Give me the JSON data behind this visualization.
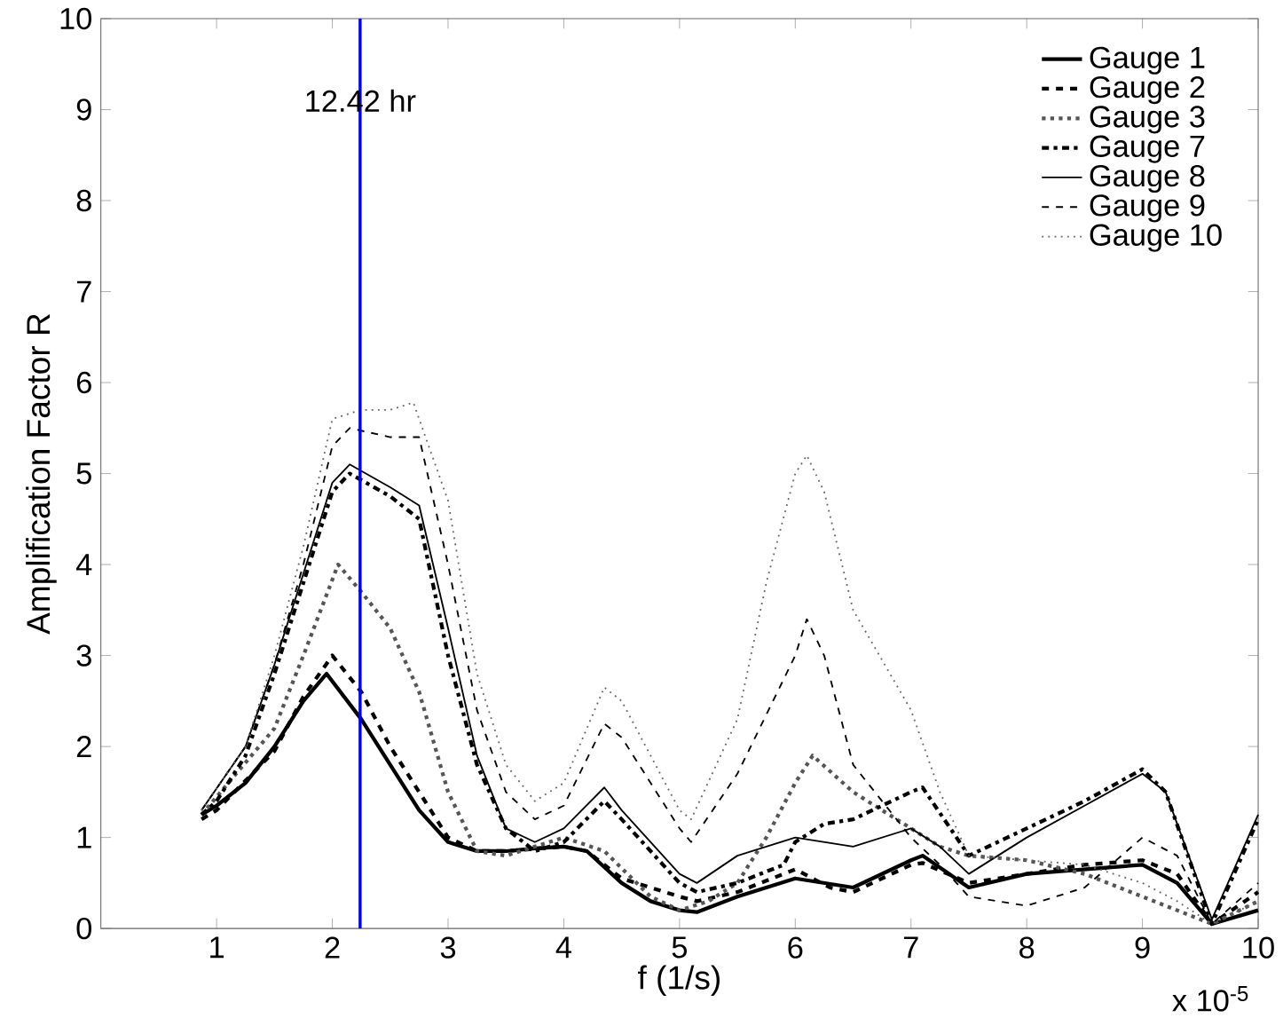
{
  "chart_data": {
    "type": "line",
    "xlabel": "f (1/s)",
    "ylabel": "Amplification Factor R",
    "xlim": [
      0,
      10
    ],
    "ylim": [
      0,
      10
    ],
    "xticks": [
      1,
      2,
      3,
      4,
      5,
      6,
      7,
      8,
      9,
      10
    ],
    "yticks": [
      0,
      1,
      2,
      3,
      4,
      5,
      6,
      7,
      8,
      9,
      10
    ],
    "grid": false,
    "legend": "top right",
    "marker": "none",
    "annotations": [
      "x 10$^{-5}$"
    ],
    "ref_lines": [
      {
        "axis": "x",
        "value": 2.24,
        "label": "12.42 hr",
        "color": "#0000ff"
      }
    ],
    "series": [
      {
        "name": "Gauge 1",
        "color": "#000000",
        "line_style": "solid",
        "x": [
          0.87,
          1.0,
          1.25,
          1.5,
          1.75,
          1.95,
          2.25,
          2.5,
          2.75,
          3.0,
          3.25,
          3.5,
          3.75,
          4.0,
          4.2,
          4.5,
          4.75,
          5.0,
          5.15,
          5.5,
          6.0,
          6.5,
          7.0,
          7.1,
          7.5,
          8.0,
          9.0,
          9.3,
          9.6,
          10
        ],
        "values": [
          1.25,
          1.35,
          1.6,
          2.0,
          2.5,
          2.8,
          2.3,
          1.8,
          1.3,
          0.95,
          0.85,
          0.85,
          0.88,
          0.9,
          0.85,
          0.5,
          0.3,
          0.2,
          0.18,
          0.35,
          0.55,
          0.45,
          0.75,
          0.8,
          0.45,
          0.6,
          0.7,
          0.5,
          0.05,
          0.2
        ]
      },
      {
        "name": "Gauge 2",
        "color": "#000000",
        "line_style": "dashed",
        "x": [
          0.87,
          1.0,
          1.5,
          1.75,
          2.0,
          2.25,
          2.5,
          2.75,
          3.0,
          3.25,
          3.5,
          4.0,
          4.2,
          4.5,
          5.0,
          5.15,
          5.5,
          6.0,
          6.3,
          6.5,
          7.0,
          7.1,
          7.5,
          8.0,
          8.5,
          9.0,
          9.3,
          9.6,
          10
        ],
        "values": [
          1.2,
          1.3,
          1.95,
          2.55,
          3.0,
          2.6,
          2.0,
          1.5,
          1.0,
          0.85,
          0.85,
          0.9,
          0.85,
          0.55,
          0.35,
          0.3,
          0.4,
          0.65,
          0.45,
          0.4,
          0.7,
          0.72,
          0.5,
          0.6,
          0.7,
          0.75,
          0.6,
          0.05,
          0.4
        ]
      },
      {
        "name": "Gauge 3",
        "color": "#555555",
        "line_style": "dotted",
        "x": [
          0.87,
          1.5,
          1.75,
          2.05,
          2.25,
          2.5,
          2.75,
          3.0,
          3.25,
          3.5,
          3.75,
          4.0,
          4.35,
          4.75,
          5.0,
          5.25,
          5.5,
          5.75,
          6.0,
          6.15,
          6.5,
          7.0,
          7.25,
          7.5,
          8.0,
          8.5,
          9.0,
          9.3,
          9.6,
          10
        ],
        "values": [
          1.25,
          2.2,
          3.0,
          4.0,
          3.7,
          3.3,
          2.6,
          1.5,
          0.85,
          0.8,
          0.9,
          1.0,
          0.85,
          0.35,
          0.2,
          0.3,
          0.5,
          1.0,
          1.6,
          1.9,
          1.5,
          1.1,
          0.9,
          0.8,
          0.75,
          0.6,
          0.35,
          0.2,
          0.05,
          0.3
        ]
      },
      {
        "name": "Gauge 7",
        "color": "#000000",
        "line_style": "dashdot",
        "x": [
          0.87,
          1.0,
          1.25,
          1.5,
          1.75,
          2.0,
          2.15,
          2.5,
          2.75,
          3.0,
          3.25,
          3.5,
          3.75,
          4.0,
          4.35,
          4.5,
          5.0,
          5.15,
          5.5,
          5.9,
          6.0,
          6.25,
          6.5,
          7.0,
          7.1,
          7.5,
          8.0,
          8.5,
          9.0,
          9.2,
          9.6,
          10
        ],
        "values": [
          1.25,
          1.4,
          1.9,
          2.8,
          3.8,
          4.8,
          5.0,
          4.75,
          4.5,
          3.0,
          1.8,
          1.1,
          0.85,
          0.95,
          1.4,
          1.2,
          0.5,
          0.4,
          0.5,
          0.7,
          0.95,
          1.15,
          1.2,
          1.5,
          1.55,
          0.8,
          1.1,
          1.4,
          1.75,
          1.5,
          0.05,
          1.2
        ]
      },
      {
        "name": "Gauge 8",
        "color": "#000000",
        "line_style": "solid",
        "x": [
          0.87,
          1.25,
          1.5,
          1.75,
          2.0,
          2.15,
          2.5,
          2.75,
          3.0,
          3.25,
          3.5,
          3.75,
          4.0,
          4.35,
          4.5,
          5.0,
          5.15,
          5.5,
          6.0,
          6.5,
          7.0,
          7.25,
          7.5,
          8.0,
          8.5,
          9.0,
          9.2,
          9.6,
          10
        ],
        "values": [
          1.3,
          2.0,
          2.9,
          3.9,
          4.9,
          5.1,
          4.85,
          4.65,
          3.3,
          1.9,
          1.1,
          0.95,
          1.1,
          1.55,
          1.3,
          0.6,
          0.5,
          0.8,
          1.0,
          0.9,
          1.1,
          0.9,
          0.6,
          1.0,
          1.35,
          1.7,
          1.5,
          0.1,
          1.25
        ]
      },
      {
        "name": "Gauge 9",
        "color": "#000000",
        "line_style": "dashed",
        "x": [
          0.87,
          1.25,
          1.5,
          1.75,
          2.0,
          2.15,
          2.5,
          2.75,
          3.0,
          3.25,
          3.5,
          3.75,
          4.0,
          4.35,
          4.5,
          5.0,
          5.1,
          5.5,
          6.0,
          6.1,
          6.25,
          6.5,
          7.0,
          7.25,
          7.5,
          8.0,
          8.5,
          9.0,
          9.3,
          9.6,
          10
        ],
        "values": [
          1.3,
          2.0,
          2.9,
          4.0,
          5.3,
          5.5,
          5.4,
          5.4,
          4.0,
          2.4,
          1.5,
          1.2,
          1.35,
          2.25,
          2.1,
          1.1,
          0.95,
          1.7,
          3.0,
          3.4,
          3.0,
          1.8,
          1.0,
          0.7,
          0.35,
          0.25,
          0.45,
          1.0,
          0.8,
          0.05,
          0.5
        ]
      },
      {
        "name": "Gauge 10",
        "color": "#666666",
        "line_style": "dotted",
        "x": [
          0.87,
          1.25,
          1.5,
          1.75,
          2.0,
          2.25,
          2.5,
          2.7,
          3.0,
          3.25,
          3.5,
          3.75,
          4.0,
          4.35,
          4.5,
          5.0,
          5.1,
          5.5,
          5.75,
          6.0,
          6.1,
          6.25,
          6.5,
          7.0,
          7.25,
          7.5,
          8.0,
          8.5,
          9.0,
          9.3,
          9.6,
          10
        ],
        "values": [
          1.3,
          2.0,
          3.0,
          4.2,
          5.6,
          5.7,
          5.7,
          5.78,
          4.7,
          2.8,
          1.8,
          1.4,
          1.6,
          2.65,
          2.5,
          1.3,
          1.2,
          2.3,
          3.8,
          5.0,
          5.2,
          4.8,
          3.5,
          2.4,
          1.5,
          0.8,
          0.75,
          0.7,
          0.5,
          0.3,
          0.05,
          0.3
        ]
      }
    ]
  }
}
